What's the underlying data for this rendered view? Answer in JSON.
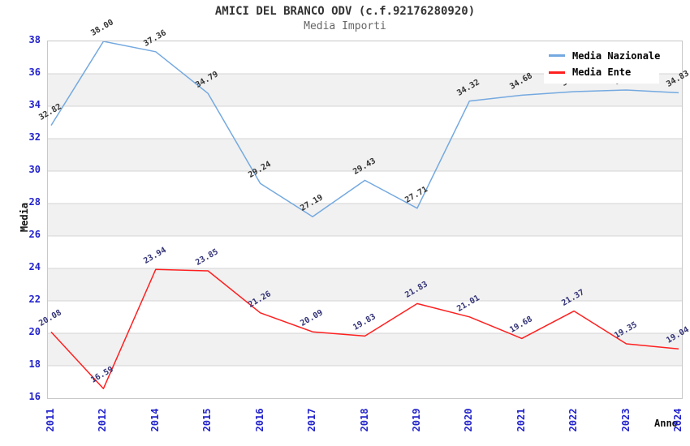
{
  "chart_data": {
    "type": "line",
    "title": "AMICI DEL BRANCO ODV (c.f.92176280920)",
    "subtitle": "Media Importi",
    "xlabel": "Anno",
    "ylabel": "Media",
    "ylim": [
      16,
      38
    ],
    "ytick_step": 2,
    "grid": "horizontal gridlines with alternating white/gray bands every 2 units",
    "legend_position": "top-right",
    "axis_tick_color": "#2323cc",
    "categories": [
      "2011",
      "2012",
      "2014",
      "2015",
      "2016",
      "2017",
      "2018",
      "2019",
      "2020",
      "2021",
      "2022",
      "2023",
      "2024"
    ],
    "series": [
      {
        "name": "Media Nazionale",
        "color": "#74a9e0",
        "label_color": "#333333",
        "values": [
          32.82,
          38.0,
          37.36,
          34.79,
          29.24,
          27.19,
          29.43,
          27.71,
          34.32,
          34.68,
          34.9,
          35.0,
          34.83
        ],
        "labels_hidden_by_legend": [
          "2022",
          "2023"
        ]
      },
      {
        "name": "Media Ente",
        "color": "#ff1f1f",
        "label_color": "#333377",
        "values": [
          20.08,
          16.59,
          23.94,
          23.85,
          21.26,
          20.09,
          19.83,
          21.83,
          21.01,
          19.68,
          21.37,
          19.35,
          19.04
        ]
      }
    ]
  }
}
